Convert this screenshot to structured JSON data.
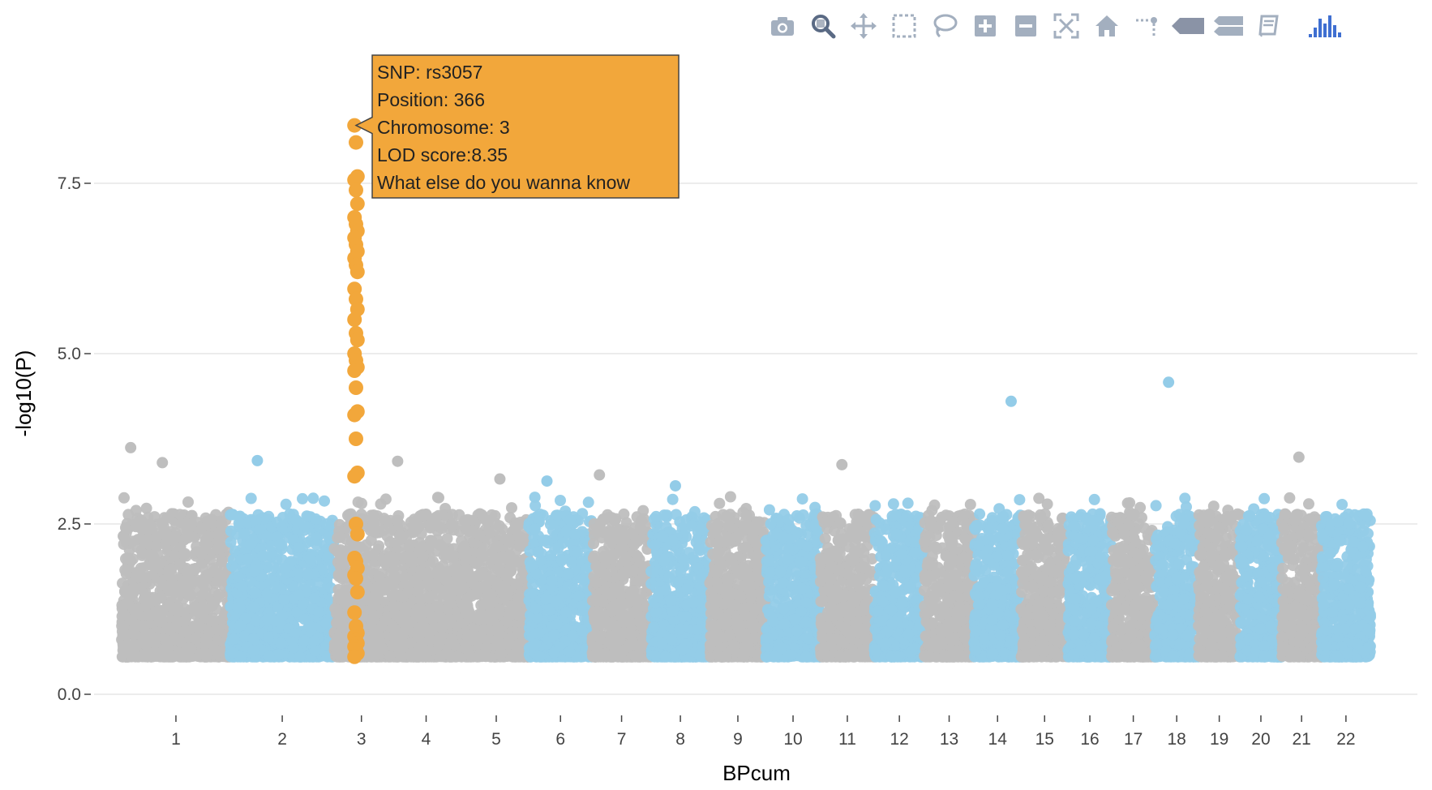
{
  "toolbar": {
    "buttons": [
      {
        "name": "camera-icon",
        "title": "Download plot as a png"
      },
      {
        "name": "zoom-icon",
        "title": "Zoom",
        "active": true
      },
      {
        "name": "pan-icon",
        "title": "Pan"
      },
      {
        "name": "box-select-icon",
        "title": "Box Select"
      },
      {
        "name": "lasso-select-icon",
        "title": "Lasso Select"
      },
      {
        "name": "zoom-in-icon",
        "title": "Zoom in"
      },
      {
        "name": "zoom-out-icon",
        "title": "Zoom out"
      },
      {
        "name": "autoscale-icon",
        "title": "Autoscale"
      },
      {
        "name": "reset-axes-icon",
        "title": "Reset axes"
      },
      {
        "name": "spike-lines-icon",
        "title": "Toggle Spike Lines"
      },
      {
        "name": "hover-closest-icon",
        "title": "Show closest data on hover"
      },
      {
        "name": "hover-compare-icon",
        "title": "Compare data on hover"
      },
      {
        "name": "book-icon",
        "title": "Edit in Chart Studio"
      }
    ],
    "logo": "plotly-logo-icon"
  },
  "colors": {
    "grey": "#bebebe",
    "blue": "#93cce8",
    "highlight": "#f2a73b",
    "tooltip_bg": "#f2a73b",
    "tooltip_border": "#444444",
    "grid": "#e6e6e6",
    "modebar_icon": "#a3afbf",
    "modebar_active": "#5a6a84",
    "logo": "#3f6fd1"
  },
  "chart_data": {
    "type": "scatter",
    "title": "",
    "xlabel": "BPcum",
    "ylabel": "-log10(P)",
    "ylim": [
      0,
      9.5
    ],
    "yticks": [
      {
        "value": 0,
        "label": "0.0"
      },
      {
        "value": 2.5,
        "label": "2.5"
      },
      {
        "value": 5,
        "label": "5.0"
      },
      {
        "value": 7.5,
        "label": "7.5"
      }
    ],
    "grid": true,
    "legend": "none",
    "chromosomes": [
      {
        "label": "1",
        "start": 0,
        "end": 120,
        "color": "grey"
      },
      {
        "label": "2",
        "start": 120,
        "end": 235,
        "color": "blue"
      },
      {
        "label": "3",
        "start": 235,
        "end": 295,
        "color": "grey"
      },
      {
        "label": "4",
        "start": 295,
        "end": 378,
        "color": "grey"
      },
      {
        "label": "5",
        "start": 378,
        "end": 450,
        "color": "grey"
      },
      {
        "label": "6",
        "start": 450,
        "end": 520,
        "color": "blue"
      },
      {
        "label": "7",
        "start": 520,
        "end": 585,
        "color": "grey"
      },
      {
        "label": "8",
        "start": 585,
        "end": 650,
        "color": "blue"
      },
      {
        "label": "9",
        "start": 650,
        "end": 712,
        "color": "grey"
      },
      {
        "label": "10",
        "start": 712,
        "end": 772,
        "color": "blue"
      },
      {
        "label": "11",
        "start": 772,
        "end": 832,
        "color": "grey"
      },
      {
        "label": "12",
        "start": 832,
        "end": 887,
        "color": "blue"
      },
      {
        "label": "13",
        "start": 887,
        "end": 942,
        "color": "grey"
      },
      {
        "label": "14",
        "start": 942,
        "end": 994,
        "color": "blue"
      },
      {
        "label": "15",
        "start": 994,
        "end": 1046,
        "color": "grey"
      },
      {
        "label": "16",
        "start": 1046,
        "end": 1094,
        "color": "blue"
      },
      {
        "label": "17",
        "start": 1094,
        "end": 1142,
        "color": "grey"
      },
      {
        "label": "18",
        "start": 1142,
        "end": 1190,
        "color": "blue"
      },
      {
        "label": "19",
        "start": 1190,
        "end": 1236,
        "color": "grey"
      },
      {
        "label": "20",
        "start": 1236,
        "end": 1282,
        "color": "blue"
      },
      {
        "label": "21",
        "start": 1282,
        "end": 1326,
        "color": "grey"
      },
      {
        "label": "22",
        "start": 1326,
        "end": 1380,
        "color": "blue"
      }
    ],
    "highlight": {
      "chromosome": "3",
      "x": 259,
      "values": [
        8.35,
        8.1,
        7.6,
        7.55,
        7.4,
        7.2,
        7.0,
        6.9,
        6.8,
        6.7,
        6.6,
        6.5,
        6.4,
        6.3,
        6.2,
        5.95,
        5.8,
        5.65,
        5.5,
        5.3,
        5.2,
        5.0,
        4.9,
        4.8,
        4.75,
        4.5,
        4.15,
        4.1,
        3.75,
        3.25,
        3.2,
        2.5,
        2.35,
        2.0,
        1.95,
        1.85,
        1.75,
        1.7,
        1.5,
        1.2,
        1.0,
        0.9,
        0.85,
        0.8,
        0.75,
        0.7,
        0.65,
        0.6,
        0.55
      ]
    },
    "notable_points": [
      {
        "chromosome": "1",
        "x": 10,
        "y": 3.62
      },
      {
        "chromosome": "1",
        "x": 45,
        "y": 3.4
      },
      {
        "chromosome": "2",
        "x": 150,
        "y": 3.43
      },
      {
        "chromosome": "4",
        "x": 305,
        "y": 3.42
      },
      {
        "chromosome": "5",
        "x": 418,
        "y": 3.16
      },
      {
        "chromosome": "6",
        "x": 470,
        "y": 3.13
      },
      {
        "chromosome": "7",
        "x": 528,
        "y": 3.22
      },
      {
        "chromosome": "8",
        "x": 612,
        "y": 3.06
      },
      {
        "chromosome": "11",
        "x": 796,
        "y": 3.37
      },
      {
        "chromosome": "14",
        "x": 983,
        "y": 4.3
      },
      {
        "chromosome": "18",
        "x": 1157,
        "y": 4.58
      },
      {
        "chromosome": "21",
        "x": 1301,
        "y": 3.48
      }
    ],
    "tooltip": {
      "lines": [
        "SNP: rs3057",
        "Position: 366",
        "Chromosome: 3",
        "LOD score:8.35",
        "What else do you wanna know"
      ],
      "x": 259,
      "y": 8.35
    }
  }
}
